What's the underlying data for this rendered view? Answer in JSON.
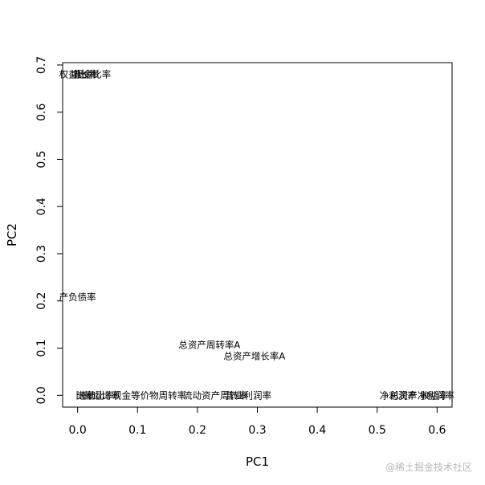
{
  "chart_data": {
    "type": "scatter",
    "xlabel": "PC1",
    "ylabel": "PC2",
    "xlim": [
      -0.025,
      0.625
    ],
    "ylim": [
      -0.025,
      0.705
    ],
    "xticks": [
      0.0,
      0.1,
      0.2,
      0.3,
      0.4,
      0.5,
      0.6
    ],
    "yticks": [
      0.0,
      0.1,
      0.2,
      0.3,
      0.4,
      0.5,
      0.6,
      0.7
    ],
    "xtick_labels": [
      "0.0",
      "0.1",
      "0.2",
      "0.3",
      "0.4",
      "0.5",
      "0.6"
    ],
    "ytick_labels": [
      "0.0",
      "0.1",
      "0.2",
      "0.3",
      "0.4",
      "0.5",
      "0.6",
      "0.7"
    ],
    "grid": false,
    "legend": "none",
    "points": [
      {
        "label": "总资产周转率A",
        "x": 0.22,
        "y": 0.107
      },
      {
        "label": "总资产增长率A",
        "x": 0.295,
        "y": 0.083
      },
      {
        "label": "产负债率",
        "x": 0.0,
        "y": 0.208
      },
      {
        "label": "现金等价物周转率",
        "x": 0.12,
        "y": 0.0
      },
      {
        "label": "流动资产周转率",
        "x": 0.23,
        "y": 0.0
      },
      {
        "label": "营业利润率",
        "x": 0.285,
        "y": 0.0
      },
      {
        "label": "总资产净利润率",
        "x": 0.575,
        "y": 0.0
      },
      {
        "label": "比率",
        "x": 0.012,
        "y": 0.0
      },
      {
        "label": "速动比率",
        "x": 0.03,
        "y": 0.0
      },
      {
        "label": "营运比率",
        "x": 0.04,
        "y": 0.0
      },
      {
        "label": "净利润率",
        "x": 0.535,
        "y": 0.0
      },
      {
        "label": "收益率",
        "x": 0.595,
        "y": 0.0
      },
      {
        "label": "权益比率",
        "x": 0.0,
        "y": 0.68
      },
      {
        "label": "增长率",
        "x": 0.012,
        "y": 0.68
      },
      {
        "label": "现金比率",
        "x": 0.025,
        "y": 0.68
      }
    ]
  },
  "watermark": "@稀土掘金技术社区"
}
